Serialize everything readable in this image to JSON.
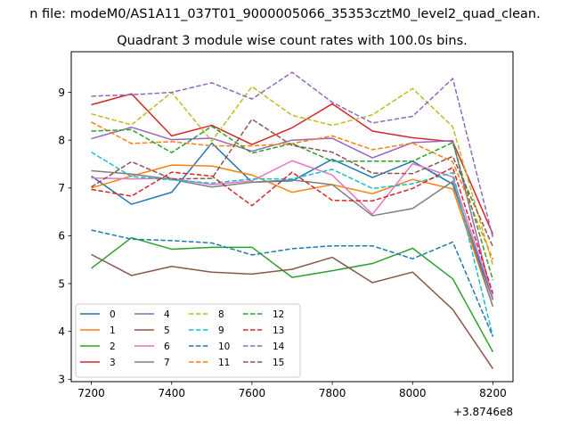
{
  "figure": {
    "suptitle": "n file: modeM0/AS1A11_037T01_9000005066_35353cztM0_level2_quad_clean.",
    "title": "Quadrant 3 module wise count rates with 100.0s bins.",
    "x_offset_label": "+3.8746e8"
  },
  "chart_data": {
    "type": "line",
    "title": "Quadrant 3 module wise count rates with 100.0s bins.",
    "xlabel": "",
    "ylabel": "",
    "x_offset": 387460000,
    "x": [
      7200,
      7300,
      7400,
      7500,
      7600,
      7700,
      7800,
      7900,
      8000,
      8100,
      8200
    ],
    "xlim": [
      7150,
      8250
    ],
    "ylim": [
      2.95,
      9.85
    ],
    "xticks": [
      7200,
      7400,
      7600,
      7800,
      8000,
      8200
    ],
    "yticks": [
      3,
      4,
      5,
      6,
      7,
      8,
      9
    ],
    "legend_position": "lower-left",
    "legend_columns": 4,
    "series": [
      {
        "name": "0",
        "color": "#1f77b4",
        "dash": "solid",
        "values": [
          7.25,
          6.66,
          6.91,
          7.94,
          7.12,
          7.15,
          7.6,
          7.22,
          7.56,
          7.08,
          4.66
        ]
      },
      {
        "name": "1",
        "color": "#ff7f0e",
        "dash": "solid",
        "values": [
          7.0,
          7.25,
          7.48,
          7.46,
          7.27,
          6.91,
          7.07,
          6.88,
          7.18,
          6.98,
          4.52
        ]
      },
      {
        "name": "2",
        "color": "#2ca02c",
        "dash": "solid",
        "values": [
          5.32,
          5.96,
          5.72,
          5.76,
          5.76,
          5.13,
          5.27,
          5.42,
          5.74,
          5.1,
          3.57
        ]
      },
      {
        "name": "3",
        "color": "#d62728",
        "dash": "solid",
        "values": [
          8.74,
          8.97,
          8.09,
          8.31,
          7.91,
          8.26,
          8.76,
          8.19,
          8.05,
          7.97,
          6.03
        ]
      },
      {
        "name": "4",
        "color": "#9467bd",
        "dash": "solid",
        "values": [
          8.03,
          8.27,
          8.01,
          8.04,
          7.77,
          8.0,
          8.04,
          7.63,
          7.95,
          7.99,
          4.66
        ]
      },
      {
        "name": "5",
        "color": "#8c564b",
        "dash": "solid",
        "values": [
          5.61,
          5.17,
          5.36,
          5.24,
          5.2,
          5.3,
          5.55,
          5.02,
          5.24,
          4.46,
          3.22
        ]
      },
      {
        "name": "6",
        "color": "#e377c2",
        "dash": "solid",
        "values": [
          7.21,
          7.19,
          7.2,
          7.07,
          7.15,
          7.57,
          7.27,
          6.45,
          7.51,
          7.23,
          4.71
        ]
      },
      {
        "name": "7",
        "color": "#7f7f7f",
        "dash": "solid",
        "values": [
          7.36,
          7.29,
          7.18,
          7.02,
          7.12,
          7.17,
          7.07,
          6.42,
          6.57,
          7.14,
          4.52
        ]
      },
      {
        "name": "8",
        "color": "#bcbd22",
        "dash": "dashed",
        "values": [
          8.55,
          8.32,
          9.0,
          7.98,
          9.12,
          8.52,
          8.31,
          8.53,
          9.08,
          8.28,
          5.38
        ]
      },
      {
        "name": "9",
        "color": "#17becf",
        "dash": "dashed",
        "values": [
          7.75,
          7.24,
          7.17,
          7.1,
          7.19,
          7.19,
          7.39,
          6.99,
          7.09,
          7.32,
          3.89
        ]
      },
      {
        "name": "10",
        "color": "#1f77b4",
        "dash": "dashed",
        "values": [
          6.12,
          5.93,
          5.9,
          5.85,
          5.6,
          5.73,
          5.79,
          5.79,
          5.52,
          5.87,
          3.89
        ]
      },
      {
        "name": "11",
        "color": "#ff7f0e",
        "dash": "dashed",
        "values": [
          8.38,
          7.93,
          7.97,
          7.88,
          7.88,
          7.93,
          8.09,
          7.8,
          7.94,
          7.55,
          5.5
        ]
      },
      {
        "name": "12",
        "color": "#2ca02c",
        "dash": "dashed",
        "values": [
          8.19,
          8.22,
          7.74,
          8.29,
          7.73,
          7.93,
          7.56,
          7.56,
          7.56,
          7.95,
          5.07
        ]
      },
      {
        "name": "13",
        "color": "#d62728",
        "dash": "dashed",
        "values": [
          6.97,
          6.83,
          7.33,
          7.25,
          6.63,
          7.33,
          6.74,
          6.73,
          6.99,
          7.43,
          4.79
        ]
      },
      {
        "name": "14",
        "color": "#9467bd",
        "dash": "dashed",
        "values": [
          8.92,
          8.95,
          9.0,
          9.2,
          8.86,
          9.42,
          8.79,
          8.36,
          8.5,
          9.29,
          5.96
        ]
      },
      {
        "name": "15",
        "color": "#8c564b",
        "dash": "dashed",
        "values": [
          7.02,
          7.55,
          7.19,
          7.2,
          8.44,
          7.89,
          7.75,
          7.31,
          7.3,
          7.66,
          5.77
        ]
      }
    ]
  }
}
